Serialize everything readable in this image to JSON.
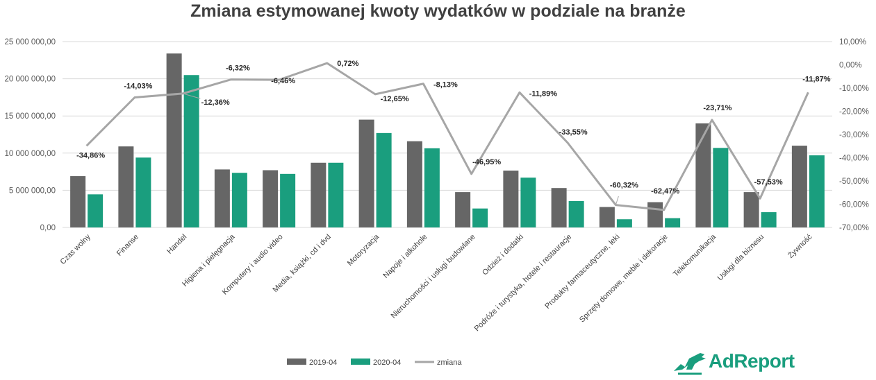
{
  "chart_data": {
    "type": "bar+line",
    "title": "Zmiana estymowanej kwoty wydatków w podziale na branże",
    "categories": [
      "Czas wolny",
      "Finanse",
      "Handel",
      "Higiena i pielęgnacja",
      "Komputery i audio video",
      "Media, książki, cd i dvd",
      "Motoryzacja",
      "Napoje i alkohole",
      "Nieruchomości i usługi budowlane",
      "Odzież i dodatki",
      "Podróże i turystyka, hotele i restauracje",
      "Produkty farmaceutyczne, leki",
      "Sprzęty domowe, meble i dekoracje",
      "Telekomunikacja",
      "Usługi dla biznesu",
      "Żywność"
    ],
    "series": [
      {
        "name": "2019-04",
        "type": "bar",
        "axis": "left",
        "color": "#666666",
        "values": [
          6900000,
          10900000,
          23400000,
          7800000,
          7700000,
          8700000,
          14500000,
          11600000,
          4750000,
          7650000,
          5300000,
          2750000,
          3400000,
          14000000,
          4750000,
          11000000
        ]
      },
      {
        "name": "2020-04",
        "type": "bar",
        "axis": "left",
        "color": "#1a9e7e",
        "values": [
          4450000,
          9400000,
          20500000,
          7350000,
          7200000,
          8700000,
          12700000,
          10650000,
          2550000,
          6700000,
          3550000,
          1100000,
          1250000,
          10700000,
          2050000,
          9700000
        ]
      },
      {
        "name": "zmiana",
        "type": "line",
        "axis": "right",
        "color": "#a6a6a6",
        "values": [
          -34.86,
          -14.03,
          -12.36,
          -6.32,
          -6.46,
          0.72,
          -12.65,
          -8.13,
          -46.95,
          -11.89,
          -33.55,
          -60.32,
          -62.47,
          -23.71,
          -57.53,
          -11.87
        ]
      }
    ],
    "data_labels": [
      "-34,86%",
      "-14,03%",
      "-12,36%",
      "-6,32%",
      "-6,46%",
      "0,72%",
      "-12,65%",
      "-8,13%",
      "-46,95%",
      "-11,89%",
      "-33,55%",
      "-60,32%",
      "-62,47%",
      "-23,71%",
      "-57,53%",
      "-11,87%"
    ],
    "ylim_left": [
      0,
      25000000
    ],
    "ylim_right": [
      -70,
      10
    ],
    "left_ticks": [
      "0,00",
      "5 000 000,00",
      "10 000 000,00",
      "15 000 000,00",
      "20 000 000,00",
      "25 000 000,00"
    ],
    "right_ticks": [
      "-70,00%",
      "-60,00%",
      "-50,00%",
      "-40,00%",
      "-30,00%",
      "-20,00%",
      "-10,00%",
      "0,00%",
      "10,00%"
    ],
    "legend": [
      "2019-04",
      "2020-04",
      "zmiana"
    ],
    "legend_position": "bottom"
  },
  "brand": {
    "name": "AdReport",
    "color": "#1a9e7e"
  }
}
